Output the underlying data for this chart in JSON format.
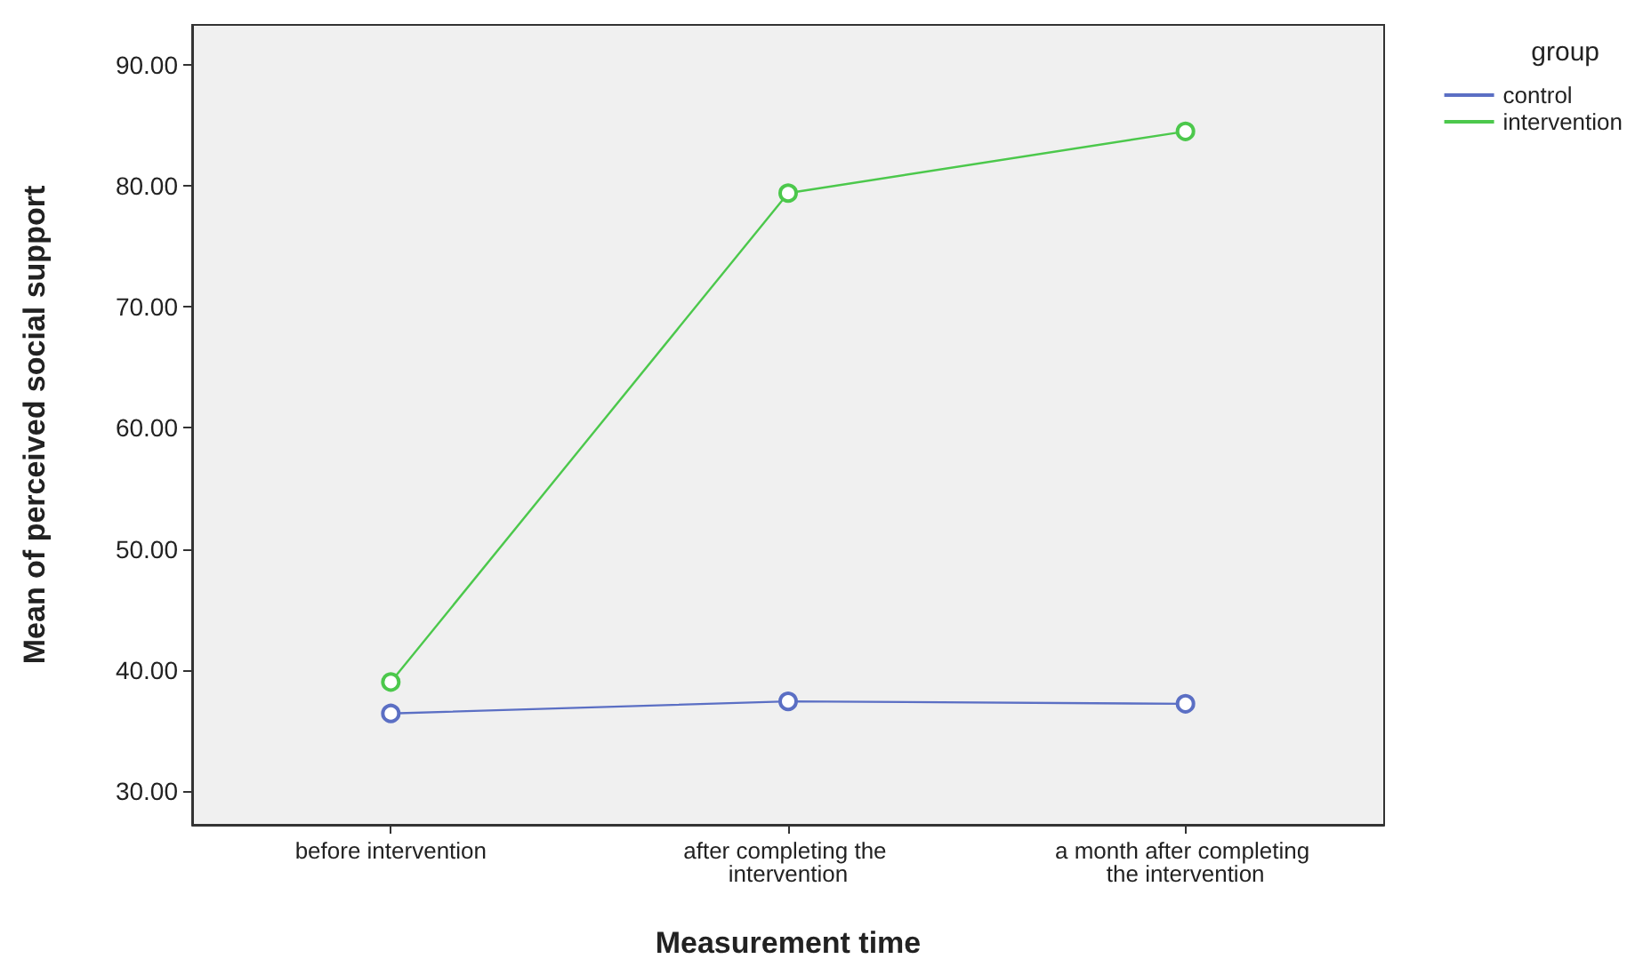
{
  "chart_data": {
    "type": "line",
    "xlabel": "Measurement time",
    "ylabel": "Mean of perceived social support",
    "legend_title": "group",
    "categories": [
      "before intervention",
      "after completing the intervention",
      "a month after completing the intervention"
    ],
    "series": [
      {
        "name": "control",
        "color": "#5b6fc4",
        "values": [
          36.4,
          37.4,
          37.2
        ]
      },
      {
        "name": "intervention",
        "color": "#4cc84c",
        "values": [
          39.0,
          79.4,
          84.5
        ]
      }
    ],
    "ylim": [
      27.2,
      93.3
    ],
    "yticks": [
      {
        "value": 30,
        "label": "30.00"
      },
      {
        "value": 40,
        "label": "40.00"
      },
      {
        "value": 50,
        "label": "50.00"
      },
      {
        "value": 60,
        "label": "60.00"
      },
      {
        "value": 70,
        "label": "70.00"
      },
      {
        "value": 80,
        "label": "80.00"
      },
      {
        "value": 90,
        "label": "90.00"
      }
    ],
    "grid": false,
    "legend": "top right",
    "marker": "circle",
    "line_style": "solid"
  }
}
